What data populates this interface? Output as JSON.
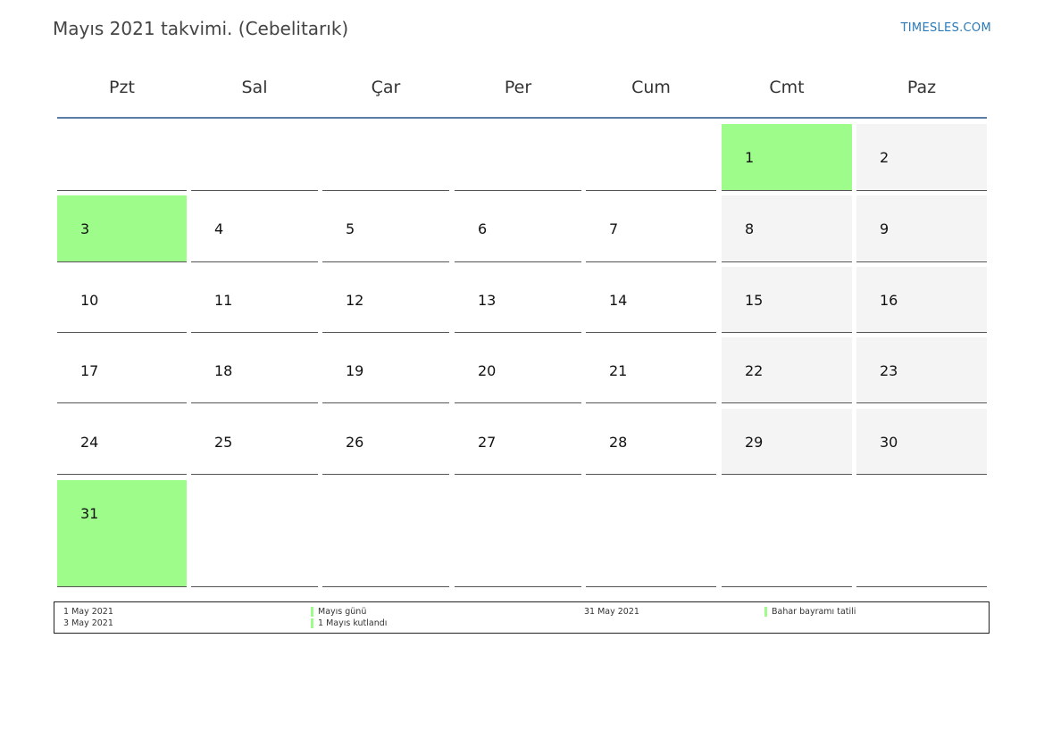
{
  "header": {
    "title": "Mayıs 2021 takvimi. (Cebelitarık)",
    "brand": "TIMESLES.COM"
  },
  "colors": {
    "holiday": "#9dfc8a",
    "weekend": "#f4f4f4",
    "header_line": "#5a7ca6",
    "brand": "#2a79b8"
  },
  "weekdays": [
    "Pzt",
    "Sal",
    "Çar",
    "Per",
    "Cum",
    "Cmt",
    "Paz"
  ],
  "weeks": [
    [
      "",
      "",
      "",
      "",
      "",
      "1",
      "2"
    ],
    [
      "3",
      "4",
      "5",
      "6",
      "7",
      "8",
      "9"
    ],
    [
      "10",
      "11",
      "12",
      "13",
      "14",
      "15",
      "16"
    ],
    [
      "17",
      "18",
      "19",
      "20",
      "21",
      "22",
      "23"
    ],
    [
      "24",
      "25",
      "26",
      "27",
      "28",
      "29",
      "30"
    ],
    [
      "31",
      "",
      "",
      "",
      "",
      "",
      ""
    ]
  ],
  "holidays": [
    "1",
    "3",
    "31"
  ],
  "legend": [
    {
      "date": "1 May 2021",
      "name": "Mayıs günü"
    },
    {
      "date": "3 May 2021",
      "name": "1 Mayıs kutlandı"
    },
    {
      "date": "31 May 2021",
      "name": "Bahar bayramı tatili"
    }
  ]
}
